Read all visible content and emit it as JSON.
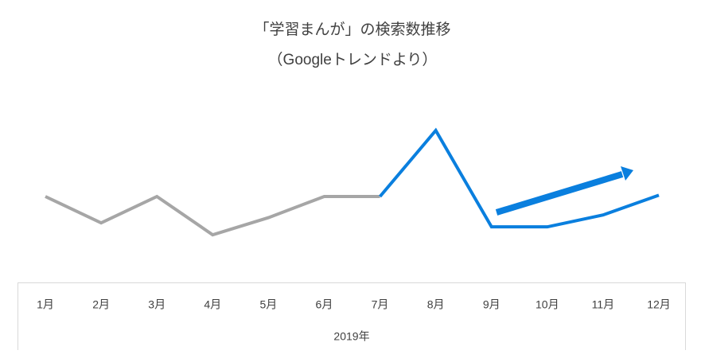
{
  "chart_data": {
    "type": "line",
    "title": "「学習まんが」の検索数推移",
    "subtitle": "（Googleトレンドより）",
    "x_label": "2019年",
    "categories": [
      "1月",
      "2月",
      "3月",
      "4月",
      "5月",
      "6月",
      "7月",
      "8月",
      "9月",
      "10月",
      "11月",
      "12月"
    ],
    "series": [
      {
        "color": "#a6a6a6",
        "values": [
          50,
          30,
          50,
          21,
          34,
          50,
          50,
          null,
          null,
          null,
          null,
          null
        ]
      },
      {
        "color": "#0a7fde",
        "values": [
          null,
          null,
          null,
          null,
          null,
          null,
          50,
          100,
          27,
          27,
          36,
          51
        ]
      }
    ],
    "ylim": [
      0,
      100
    ]
  }
}
